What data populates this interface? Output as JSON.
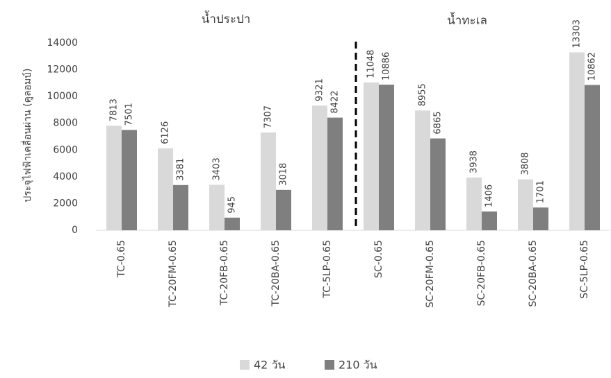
{
  "chart_data": {
    "type": "bar",
    "y_label": "ประจุไฟฟ้าเคลื่อนผ่าน (คูลอมบ์)",
    "annotations": [
      "น้ำประปา",
      "น้ำทะเล"
    ],
    "categories": [
      "TC-0.65",
      "TC-20FM-0.65",
      "TC-20FB-0.65",
      "TC-20BA-0.65",
      "TC-5LP-0.65",
      "SC-0.65",
      "SC-20FM-0.65",
      "SC-20FB-0.65",
      "SC-20BA-0.65",
      "SC-5LP-0.65"
    ],
    "series": [
      {
        "name": "42 วัน",
        "color": "#d9d9d9",
        "values": [
          7813,
          6126,
          3403,
          7307,
          9321,
          11048,
          8955,
          3938,
          3808,
          13303
        ]
      },
      {
        "name": "210 วัน",
        "color": "#7f7f7f",
        "values": [
          7501,
          3381,
          945,
          3018,
          8422,
          10886,
          6865,
          1406,
          1701,
          10862
        ]
      }
    ],
    "ylim": [
      0,
      14000
    ],
    "yticks": [
      0,
      2000,
      4000,
      6000,
      8000,
      10000,
      12000,
      14000
    ],
    "grid": false,
    "legend": "bottom"
  }
}
